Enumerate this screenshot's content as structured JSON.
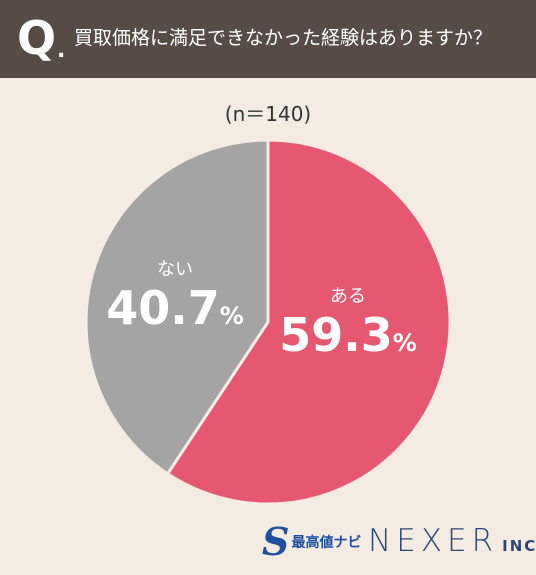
{
  "header": {
    "q_letter": "Q",
    "q_dot": ".",
    "question": "買取価格に満足できなかった経験はありますか？"
  },
  "sample_size": "(n＝140)",
  "chart_data": {
    "type": "pie",
    "slices": [
      {
        "label": "ある",
        "value": 59.3,
        "value_text": "59.3",
        "color": "#e55870"
      },
      {
        "label": "ない",
        "value": 40.7,
        "value_text": "40.7",
        "color": "#a4a4a4"
      }
    ],
    "unit": "%",
    "start": "12 o'clock",
    "direction": "clockwise"
  },
  "logos": {
    "brand1_mark": "S",
    "brand1_text": "最高値ナビ",
    "brand2_main": "NEXER",
    "brand2_suffix": "INC."
  },
  "colors": {
    "header_bg": "#564c45",
    "page_bg": "#f4ece2",
    "slice_border": "#f4ece2"
  }
}
